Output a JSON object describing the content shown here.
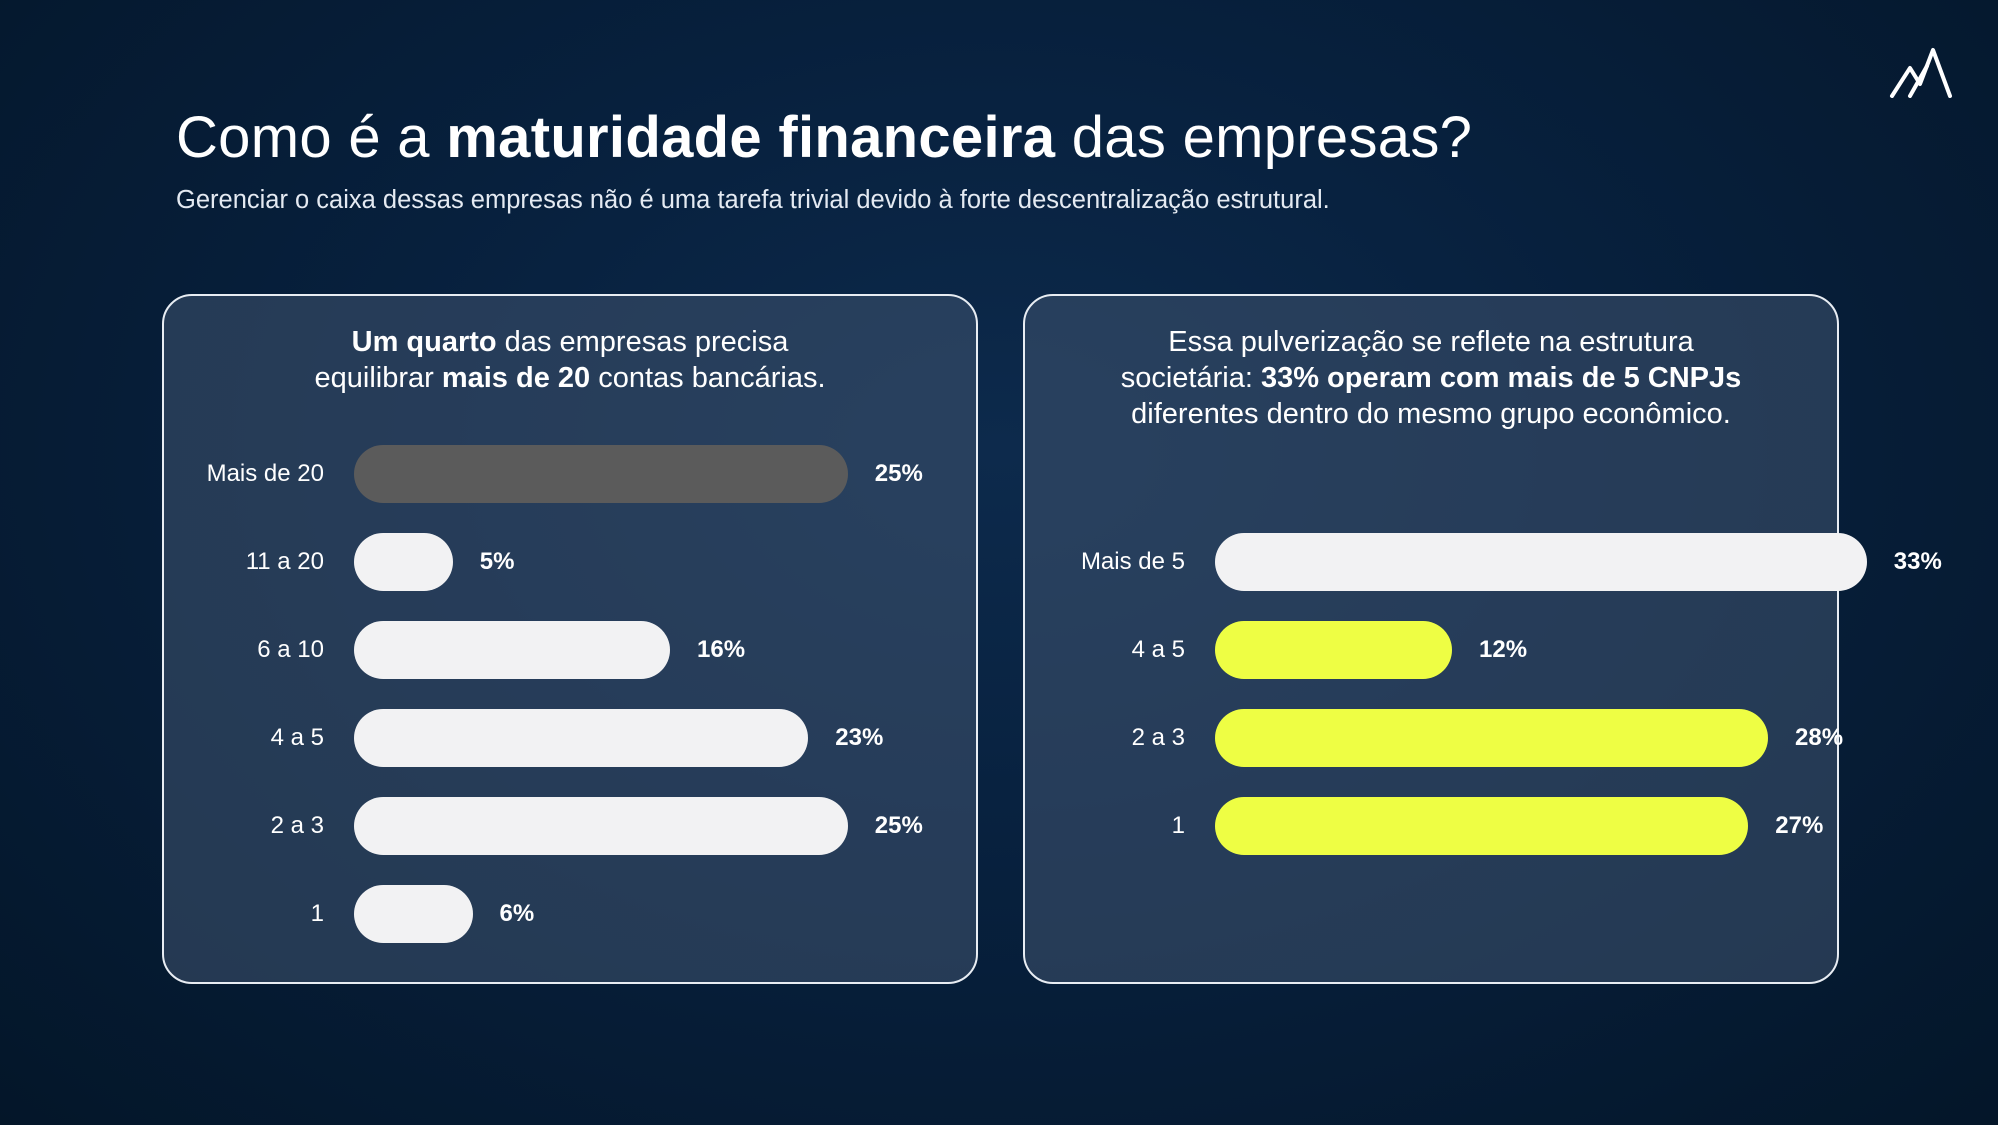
{
  "header": {
    "title_pre": "Como é a ",
    "title_bold": "maturidade financeira",
    "title_post": " das empresas?",
    "subtitle": "Gerenciar o caixa dessas empresas não é uma tarefa trivial devido à forte descentralização estrutural."
  },
  "logo": {
    "icon": "mountain-logo-icon"
  },
  "colors": {
    "background": "#07203d",
    "panel_border": "#e8edf3",
    "bar_white": "#f2f2f3",
    "bar_gray": "#5b5b5b",
    "bar_yellow": "#eefe44"
  },
  "left_panel": {
    "heading": {
      "bold1": "Um quarto",
      "text1": " das empresas precisa",
      "text2": "equilibrar ",
      "bold2": "mais de 20",
      "text3": " contas bancárias."
    }
  },
  "right_panel": {
    "heading": {
      "text1": "Essa pulverização se reflete na estrutura",
      "text2": "societária: ",
      "bold1": "33% operam com mais de 5 CNPJs",
      "text3": "diferentes dentro do mesmo grupo econômico."
    }
  },
  "chart_data": [
    {
      "type": "bar",
      "orientation": "horizontal",
      "categories": [
        "Mais de 20",
        "11 a 20",
        "6 a 10",
        "4 a 5",
        "2 a 3",
        "1"
      ],
      "values": [
        25,
        5,
        16,
        23,
        25,
        6
      ],
      "value_labels": [
        "25%",
        "5%",
        "16%",
        "23%",
        "25%",
        "6%"
      ],
      "bar_colors": [
        "#5b5b5b",
        "#f2f2f3",
        "#f2f2f3",
        "#f2f2f3",
        "#f2f2f3",
        "#f2f2f3"
      ],
      "grid": false
    },
    {
      "type": "bar",
      "orientation": "horizontal",
      "categories": [
        "Mais de 5",
        "4 a 5",
        "2 a 3",
        "1"
      ],
      "values": [
        33,
        12,
        28,
        27
      ],
      "value_labels": [
        "33%",
        "12%",
        "28%",
        "27%"
      ],
      "bar_colors": [
        "#f2f2f3",
        "#eefe44",
        "#eefe44",
        "#eefe44"
      ],
      "grid": false
    }
  ]
}
